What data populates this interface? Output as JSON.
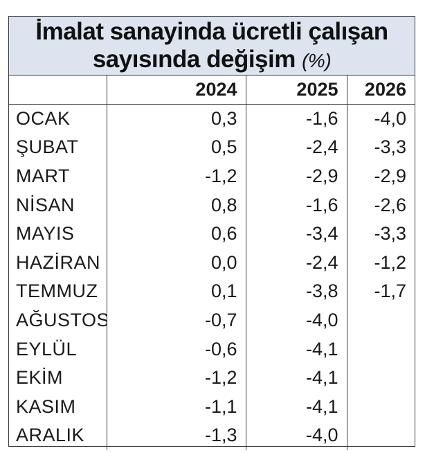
{
  "title": {
    "line1": "İmalat sanayinda ücretli çalışan",
    "line2": "sayısında değişim",
    "unit": "(%)"
  },
  "columns": [
    "2024",
    "2025",
    "2026"
  ],
  "rows": [
    {
      "month": "OCAK",
      "values": [
        "0,3",
        "-1,6",
        "-4,0"
      ]
    },
    {
      "month": "ŞUBAT",
      "values": [
        "0,5",
        "-2,4",
        "-3,3"
      ]
    },
    {
      "month": "MART",
      "values": [
        "-1,2",
        "-2,9",
        "-2,9"
      ]
    },
    {
      "month": "NİSAN",
      "values": [
        "0,8",
        "-1,6",
        "-2,6"
      ]
    },
    {
      "month": "MAYIS",
      "values": [
        "0,6",
        "-3,4",
        "-3,3"
      ]
    },
    {
      "month": "HAZİRAN",
      "values": [
        "0,0",
        "-2,4",
        "-1,2"
      ]
    },
    {
      "month": "TEMMUZ",
      "values": [
        "0,1",
        "-3,8",
        "-1,7"
      ]
    },
    {
      "month": "AĞUSTOS",
      "values": [
        "-0,7",
        "-4,0",
        ""
      ]
    },
    {
      "month": "EYLÜL",
      "values": [
        "-0,6",
        "-4,1",
        ""
      ]
    },
    {
      "month": "EKİM",
      "values": [
        "-1,2",
        "-4,1",
        ""
      ]
    },
    {
      "month": "KASIM",
      "values": [
        "-1,1",
        "-4,1",
        ""
      ]
    },
    {
      "month": "ARALIK",
      "values": [
        "-1,3",
        "-4,0",
        ""
      ]
    }
  ],
  "colors": {
    "title_background": "#dde3ef",
    "border": "#3a3a3a",
    "text": "#1a1a1a"
  }
}
